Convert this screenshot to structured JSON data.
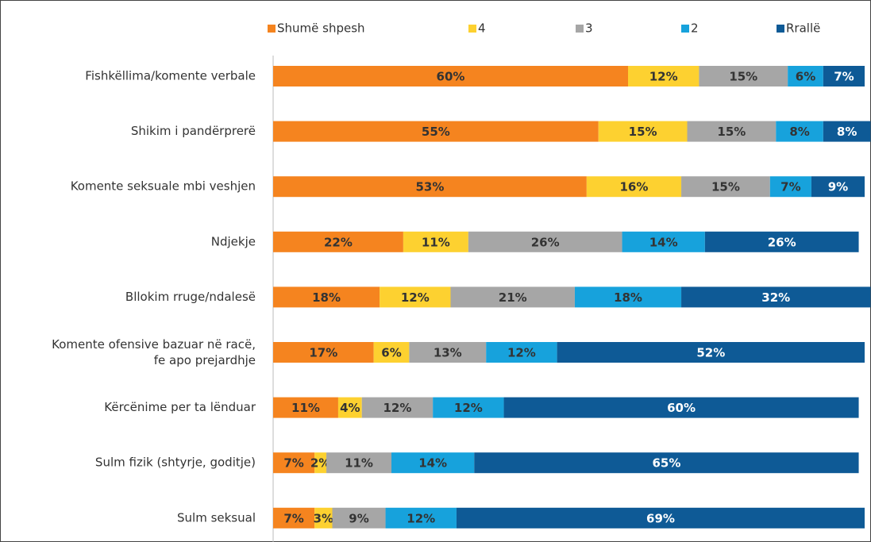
{
  "chart_data": {
    "type": "stacked_barh",
    "categories": [
      "Fishkëllima/komente verbale",
      "Shikim i pandërprerë",
      "Komente seksuale mbi veshjen",
      "Ndjekje",
      "Bllokim rruge/ndalesë",
      "Komente ofensive bazuar në racë,\nfe apo prejardhje",
      "Kërcënime per ta lënduar",
      "Sulm fizik (shtyrje, goditje)",
      "Sulm seksual"
    ],
    "series": [
      {
        "name": "Shumë shpesh",
        "color": "#f5841f",
        "label_color": "#333333",
        "values": [
          60,
          55,
          53,
          22,
          18,
          17,
          11,
          7,
          7
        ],
        "value_labels": [
          "60%",
          "55%",
          "53%",
          "22%",
          "18%",
          "17%",
          "11%",
          "7%",
          "7%"
        ]
      },
      {
        "name": "4",
        "color": "#fdd130",
        "label_color": "#333333",
        "values": [
          12,
          15,
          16,
          11,
          12,
          6,
          4,
          2,
          3
        ],
        "value_labels": [
          "12%",
          "15%",
          "16%",
          "11%",
          "12%",
          "6%",
          "4%",
          "2%",
          "3%"
        ]
      },
      {
        "name": "3",
        "color": "#a6a6a6",
        "label_color": "#333333",
        "values": [
          15,
          15,
          15,
          26,
          21,
          13,
          12,
          11,
          9
        ],
        "value_labels": [
          "15%",
          "15%",
          "15%",
          "26%",
          "21%",
          "13%",
          "12%",
          "11%",
          "9%"
        ]
      },
      {
        "name": "2",
        "color": "#17a2dc",
        "label_color": "#333333",
        "values": [
          6,
          8,
          7,
          14,
          18,
          12,
          12,
          14,
          12
        ],
        "value_labels": [
          "6%",
          "8%",
          "7%",
          "14%",
          "18%",
          "12%",
          "12%",
          "14%",
          "12%"
        ]
      },
      {
        "name": "Rrallë",
        "color": "#0e5a96",
        "label_color": "#ffffff",
        "values": [
          7,
          8,
          9,
          26,
          32,
          52,
          60,
          65,
          69
        ],
        "value_labels": [
          "7%",
          "8%",
          "9%",
          "26%",
          "32%",
          "52%",
          "60%",
          "65%",
          "69%"
        ]
      }
    ],
    "xlim": [
      0,
      100
    ]
  }
}
